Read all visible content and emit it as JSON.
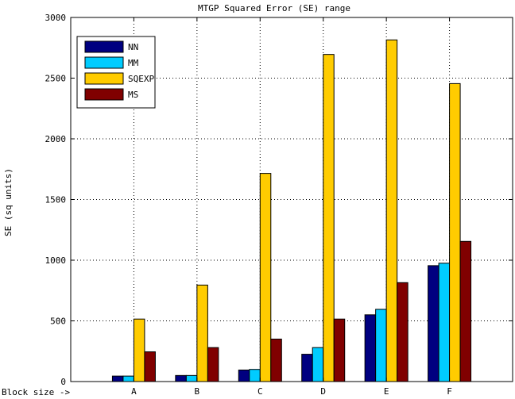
{
  "chart_data": {
    "type": "bar",
    "title": "MTGP Squared Error (SE) range",
    "xlabel": "",
    "ylabel": "SE (sq units)",
    "x_prefix_label": "Block size ->",
    "categories": [
      "A",
      "B",
      "C",
      "D",
      "E",
      "F"
    ],
    "ylim": [
      0,
      3000
    ],
    "yticks": [
      0,
      500,
      1000,
      1500,
      2000,
      2500,
      3000
    ],
    "grid": true,
    "legend_position": "top-left",
    "series": [
      {
        "name": "NN",
        "color": "#000080",
        "values": [
          45,
          50,
          95,
          225,
          550,
          955
        ]
      },
      {
        "name": "MM",
        "color": "#00ccff",
        "values": [
          45,
          50,
          100,
          280,
          595,
          975
        ]
      },
      {
        "name": "SQEXP",
        "color": "#ffcc00",
        "values": [
          515,
          795,
          1715,
          2695,
          2815,
          2455
        ]
      },
      {
        "name": "MS",
        "color": "#800000",
        "values": [
          245,
          280,
          350,
          515,
          815,
          1155
        ]
      }
    ]
  }
}
